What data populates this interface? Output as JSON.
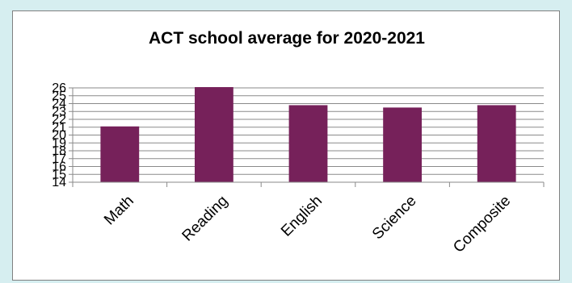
{
  "chart_data": {
    "type": "bar",
    "title": "ACT school average for 2020-2021",
    "categories": [
      "Math",
      "Reading",
      "English",
      "Science",
      "Composite"
    ],
    "values": [
      21.1,
      26.1,
      23.8,
      23.5,
      23.8
    ],
    "ylim": [
      14,
      26
    ],
    "yticks": [
      14,
      15,
      16,
      17,
      18,
      19,
      20,
      21,
      22,
      23,
      24,
      25,
      26
    ],
    "ytick_labels": [
      "14",
      "15",
      "16",
      "17",
      "18",
      "19",
      "20",
      "21",
      "22",
      "23",
      "24",
      "25",
      "26"
    ],
    "grid": true,
    "legend": "none",
    "bar_color": "#76215a",
    "xlabel": "",
    "ylabel": ""
  }
}
